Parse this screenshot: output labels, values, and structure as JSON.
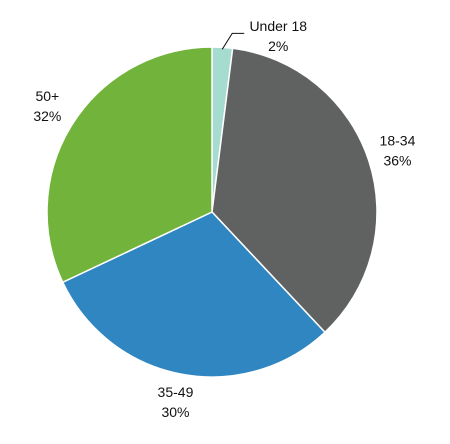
{
  "chart_data": {
    "type": "pie",
    "categories": [
      "Under 18",
      "18-34",
      "35-49",
      "50+"
    ],
    "values": [
      2,
      36,
      30,
      32
    ],
    "value_labels": [
      "2%",
      "36%",
      "30%",
      "32%"
    ],
    "colors": [
      "#a6dbd0",
      "#606261",
      "#2f86c1",
      "#72b43b"
    ]
  }
}
